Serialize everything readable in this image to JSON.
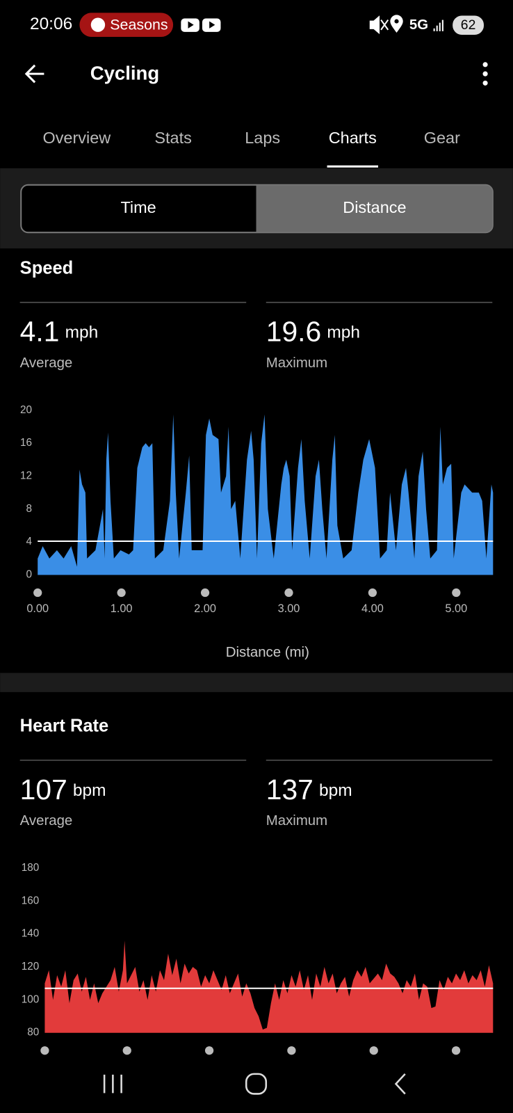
{
  "status_bar": {
    "time": "20:06",
    "app_pill": "Seasons",
    "network": "5G",
    "battery": "62"
  },
  "header": {
    "title": "Cycling"
  },
  "tabs": {
    "items": [
      "Overview",
      "Stats",
      "Laps",
      "Charts",
      "Gear"
    ],
    "selected": 3
  },
  "toggle": {
    "options": [
      "Time",
      "Distance"
    ],
    "selected": 1
  },
  "chart_data": [
    {
      "type": "area",
      "title": "Speed",
      "stats": [
        {
          "value": 4.1,
          "unit": "mph",
          "label": "Average"
        },
        {
          "value": 19.6,
          "unit": "mph",
          "label": "Maximum"
        }
      ],
      "color": "#3a8ee6",
      "xlabel": "Distance (mi)",
      "x": [
        0.0,
        0.06,
        0.14,
        0.23,
        0.31,
        0.4,
        0.47,
        0.5,
        0.53,
        0.57,
        0.59,
        0.69,
        0.78,
        0.8,
        0.82,
        0.84,
        0.87,
        0.91,
        0.99,
        1.09,
        1.14,
        1.19,
        1.25,
        1.29,
        1.33,
        1.37,
        1.4,
        1.5,
        1.58,
        1.62,
        1.65,
        1.69,
        1.77,
        1.81,
        1.84,
        1.97,
        2.01,
        2.05,
        2.09,
        2.16,
        2.19,
        2.25,
        2.28,
        2.31,
        2.36,
        2.42,
        2.5,
        2.55,
        2.58,
        2.62,
        2.67,
        2.71,
        2.75,
        2.82,
        2.91,
        2.94,
        2.97,
        3.01,
        3.04,
        3.11,
        3.15,
        3.19,
        3.25,
        3.32,
        3.36,
        3.4,
        3.45,
        3.52,
        3.55,
        3.58,
        3.65,
        3.75,
        3.83,
        3.89,
        3.96,
        4.03,
        4.09,
        4.17,
        4.21,
        4.28,
        4.35,
        4.4,
        4.43,
        4.5,
        4.55,
        4.6,
        4.64,
        4.69,
        4.77,
        4.81,
        4.84,
        4.89,
        4.94,
        4.97,
        5.06,
        5.1,
        5.19,
        5.27,
        5.31,
        5.36,
        5.4,
        5.42,
        5.44
      ],
      "values": [
        2,
        3.5,
        2,
        3,
        2,
        3.5,
        1,
        12.8,
        11,
        10,
        2,
        3,
        8,
        2,
        14,
        17.3,
        9,
        2,
        3,
        2.5,
        3,
        13,
        15.5,
        16,
        15.5,
        16,
        2,
        3,
        9,
        19.5,
        10,
        2,
        10,
        14.5,
        3,
        3,
        17,
        19,
        17,
        16.5,
        10,
        12,
        18,
        8,
        9,
        2,
        14,
        17.5,
        14,
        2,
        16,
        19.5,
        8,
        2,
        11,
        13,
        14,
        12,
        3,
        13,
        16.5,
        9,
        2,
        12,
        14,
        8,
        2,
        14,
        17,
        6,
        2,
        3,
        10,
        14,
        16.5,
        13,
        2,
        3,
        10,
        3,
        11,
        13,
        10,
        2,
        12,
        15,
        8,
        2,
        3,
        18,
        11,
        13,
        13.5,
        2,
        10,
        11,
        10,
        10,
        9,
        2,
        8,
        11,
        10
      ],
      "xlim": [
        0,
        5.44
      ],
      "ylim": [
        0,
        20
      ],
      "yticks": [
        0,
        4,
        8,
        12,
        16,
        20
      ],
      "xticks": [
        {
          "value": 0,
          "label": "0.00"
        },
        {
          "value": 1,
          "label": "1.00"
        },
        {
          "value": 2,
          "label": "2.00"
        },
        {
          "value": 3,
          "label": "3.00"
        },
        {
          "value": 4,
          "label": "4.00"
        },
        {
          "value": 5,
          "label": "5.00"
        }
      ]
    },
    {
      "type": "area",
      "title": "Heart Rate",
      "stats": [
        {
          "value": 107,
          "unit": "bpm",
          "label": "Average"
        },
        {
          "value": 137,
          "unit": "bpm",
          "label": "Maximum"
        }
      ],
      "color": "#e23b3b",
      "x": [
        0,
        0.05,
        0.1,
        0.15,
        0.2,
        0.25,
        0.3,
        0.35,
        0.4,
        0.45,
        0.5,
        0.55,
        0.6,
        0.65,
        0.7,
        0.75,
        0.8,
        0.85,
        0.9,
        0.95,
        0.97,
        1.0,
        1.05,
        1.1,
        1.15,
        1.2,
        1.25,
        1.3,
        1.35,
        1.4,
        1.45,
        1.5,
        1.55,
        1.6,
        1.65,
        1.7,
        1.75,
        1.8,
        1.85,
        1.9,
        1.95,
        2.0,
        2.05,
        2.1,
        2.15,
        2.2,
        2.25,
        2.3,
        2.35,
        2.4,
        2.45,
        2.5,
        2.55,
        2.6,
        2.65,
        2.7,
        2.75,
        2.8,
        2.85,
        2.9,
        2.95,
        3.0,
        3.05,
        3.1,
        3.15,
        3.2,
        3.25,
        3.3,
        3.35,
        3.4,
        3.45,
        3.5,
        3.55,
        3.6,
        3.65,
        3.7,
        3.75,
        3.8,
        3.85,
        3.9,
        3.95,
        4.0,
        4.05,
        4.1,
        4.15,
        4.2,
        4.25,
        4.3,
        4.35,
        4.4,
        4.45,
        4.5,
        4.55,
        4.6,
        4.65,
        4.7,
        4.75,
        4.8,
        4.85,
        4.9,
        4.95,
        5.0,
        5.05,
        5.1,
        5.15,
        5.2,
        5.25,
        5.3,
        5.35,
        5.4,
        5.45
      ],
      "values": [
        110,
        118,
        100,
        115,
        108,
        118,
        98,
        112,
        116,
        105,
        114,
        100,
        110,
        98,
        104,
        108,
        112,
        120,
        105,
        118,
        136,
        110,
        115,
        120,
        105,
        112,
        100,
        115,
        105,
        118,
        112,
        128,
        115,
        125,
        110,
        122,
        116,
        120,
        118,
        108,
        115,
        110,
        118,
        112,
        106,
        115,
        104,
        110,
        116,
        102,
        110,
        104,
        95,
        90,
        82,
        83,
        98,
        110,
        100,
        112,
        104,
        115,
        108,
        118,
        106,
        115,
        100,
        116,
        108,
        120,
        110,
        116,
        104,
        110,
        114,
        102,
        112,
        118,
        114,
        120,
        110,
        113,
        116,
        112,
        122,
        116,
        114,
        110,
        104,
        112,
        108,
        116,
        100,
        110,
        108,
        95,
        96,
        112,
        106,
        114,
        110,
        116,
        112,
        118,
        110,
        115,
        112,
        118,
        108,
        121,
        110
      ],
      "xlim": [
        0,
        5.45
      ],
      "ylim": [
        80,
        180
      ],
      "yticks": [
        80,
        100,
        120,
        140,
        160,
        180
      ],
      "xticks": [
        0,
        1,
        2,
        3,
        4,
        5
      ]
    }
  ]
}
